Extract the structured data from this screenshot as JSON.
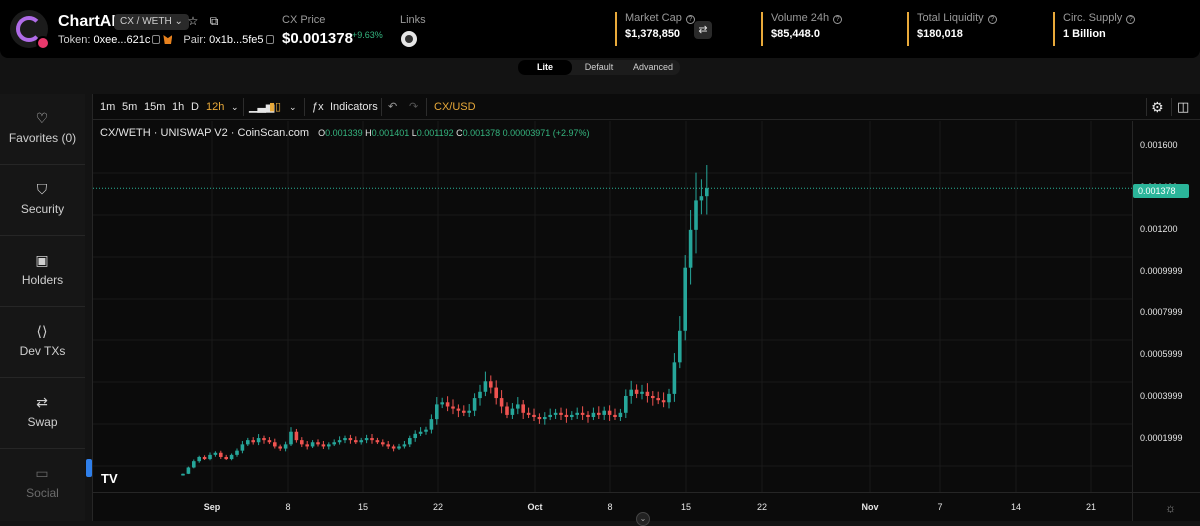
{
  "header": {
    "token_name": "ChartAI",
    "pair_label": "CX / WETH",
    "token_label": "Token:",
    "token_addr": "0xee...621c",
    "pair_prefix": "Pair:",
    "pair_addr": "0x1b...5fe5",
    "price_label": "CX Price",
    "price": "$0.001378",
    "price_change": "+9.63%",
    "links_label": "Links",
    "stats": [
      {
        "label": "Market Cap",
        "value": "$1,378,850"
      },
      {
        "label": "Volume 24h",
        "value": "$85,448.0"
      },
      {
        "label": "Total Liquidity",
        "value": "$180,018"
      },
      {
        "label": "Circ. Supply",
        "value": "1 Billion"
      }
    ]
  },
  "view_toggle": [
    "Lite",
    "Default",
    "Advanced"
  ],
  "view_active": "Lite",
  "sidebar": [
    {
      "label": "Favorites (0)",
      "icon": "heart-icon"
    },
    {
      "label": "Security",
      "icon": "shield-icon"
    },
    {
      "label": "Holders",
      "icon": "wallet-icon"
    },
    {
      "label": "Dev TXs",
      "icon": "code-icon"
    },
    {
      "label": "Swap",
      "icon": "swap-icon"
    },
    {
      "label": "Social",
      "icon": "chat-icon"
    }
  ],
  "toolbar": {
    "intervals": [
      "1m",
      "5m",
      "15m",
      "1h",
      "D",
      "12h"
    ],
    "active_interval": "12h",
    "indicators": "Indicators",
    "symbol": "CX/USD"
  },
  "chart_legend": {
    "title": "CX/WETH · UNISWAP V2 · CoinScan.com",
    "o": "0.001339",
    "h": "0.001401",
    "l": "0.001192",
    "c": "0.001378",
    "change": "0.00003971 (+2.97%)"
  },
  "colors": {
    "up": "#26a69a",
    "down": "#ef5350",
    "accent": "#e8a93a",
    "price_tag": "#2bb59a"
  },
  "chart_data": {
    "type": "candlestick",
    "y_ticks": [
      "0.001600",
      "0.001400",
      "0.001200",
      "0.0009999",
      "0.0007999",
      "0.0005999",
      "0.0003999",
      "0.0001999"
    ],
    "current_price_label": "0.001378",
    "x_ticks": [
      "Sep",
      "8",
      "15",
      "22",
      "Oct",
      "8",
      "15",
      "22",
      "Nov",
      "7",
      "14",
      "21"
    ],
    "ylim": [
      0,
      0.00165
    ],
    "closes": [
      2e-05,
      5e-05,
      8e-05,
      0.0001,
      9e-05,
      0.00011,
      0.00012,
      0.0001,
      9e-05,
      0.00011,
      0.00013,
      0.00016,
      0.00018,
      0.00017,
      0.00019,
      0.00018,
      0.00017,
      0.00015,
      0.00014,
      0.00016,
      0.00022,
      0.00018,
      0.00016,
      0.00015,
      0.00017,
      0.00016,
      0.00015,
      0.00016,
      0.00017,
      0.00018,
      0.00019,
      0.00018,
      0.00017,
      0.00018,
      0.00019,
      0.00018,
      0.00017,
      0.00016,
      0.00015,
      0.00014,
      0.00015,
      0.00016,
      0.00019,
      0.00021,
      0.00022,
      0.00023,
      0.00028,
      0.00035,
      0.00036,
      0.00034,
      0.00033,
      0.00032,
      0.00031,
      0.00032,
      0.00038,
      0.00041,
      0.00046,
      0.00043,
      0.00038,
      0.00034,
      0.0003,
      0.00033,
      0.00035,
      0.00031,
      0.0003,
      0.00029,
      0.00028,
      0.00029,
      0.0003,
      0.00031,
      0.0003,
      0.00029,
      0.0003,
      0.00031,
      0.0003,
      0.00029,
      0.00031,
      0.0003,
      0.00032,
      0.0003,
      0.00029,
      0.00031,
      0.00039,
      0.00042,
      0.0004,
      0.00041,
      0.00039,
      0.00038,
      0.00037,
      0.00036,
      0.0004,
      0.00055,
      0.0007,
      0.001,
      0.00118,
      0.00132,
      0.00134,
      0.001378
    ]
  }
}
